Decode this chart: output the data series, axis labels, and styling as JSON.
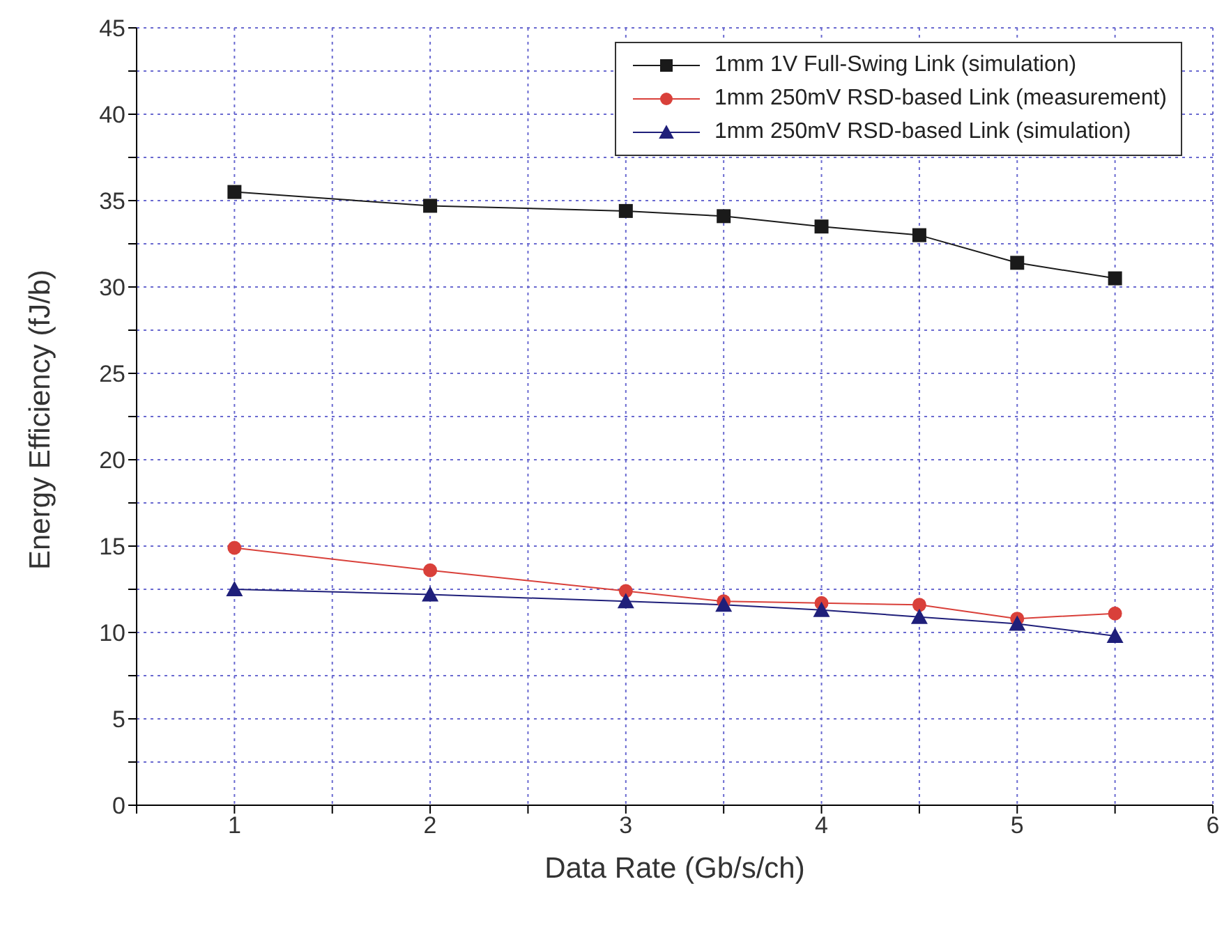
{
  "chart_data": {
    "type": "line",
    "xlabel": "Data Rate (Gb/s/ch)",
    "ylabel": "Energy Efficiency (fJ/b)",
    "x": [
      1,
      2,
      3,
      3.5,
      4,
      4.5,
      5,
      5.5
    ],
    "series": [
      {
        "name": "1mm 1V Full-Swing Link (simulation)",
        "color": "#1a1a1a",
        "marker": "square",
        "values": [
          35.5,
          34.7,
          34.4,
          34.1,
          33.5,
          33.0,
          31.4,
          30.5
        ]
      },
      {
        "name": "1mm 250mV RSD-based Link (measurement)",
        "color": "#d9403a",
        "marker": "circle",
        "values": [
          14.9,
          13.6,
          12.4,
          11.8,
          11.7,
          11.6,
          10.8,
          11.1
        ]
      },
      {
        "name": "1mm 250mV RSD-based Link (simulation)",
        "color": "#1f1f7a",
        "marker": "triangle",
        "values": [
          12.5,
          12.2,
          11.8,
          11.6,
          11.3,
          10.9,
          10.5,
          9.8
        ]
      }
    ],
    "xlim": [
      0.5,
      6
    ],
    "xticks": [
      {
        "value": 0.5,
        "label": null
      },
      1,
      {
        "value": 1.5,
        "label": null
      },
      2,
      {
        "value": 2.5,
        "label": null
      },
      3,
      {
        "value": 3.5,
        "label": null
      },
      4,
      {
        "value": 4.5,
        "label": null
      },
      5,
      {
        "value": 5.5,
        "label": null
      },
      6
    ],
    "ylim": [
      0,
      45
    ],
    "yticks": [
      0,
      {
        "value": 2.5,
        "label": null
      },
      5,
      {
        "value": 7.5,
        "label": null
      },
      10,
      {
        "value": 12.5,
        "label": null
      },
      15,
      {
        "value": 17.5,
        "label": null
      },
      20,
      {
        "value": 22.5,
        "label": null
      },
      25,
      {
        "value": 27.5,
        "label": null
      },
      30,
      {
        "value": 32.5,
        "label": null
      },
      35,
      {
        "value": 37.5,
        "label": null
      },
      40,
      {
        "value": 42.5,
        "label": null
      },
      45
    ],
    "grid": true,
    "legend": "top right"
  }
}
